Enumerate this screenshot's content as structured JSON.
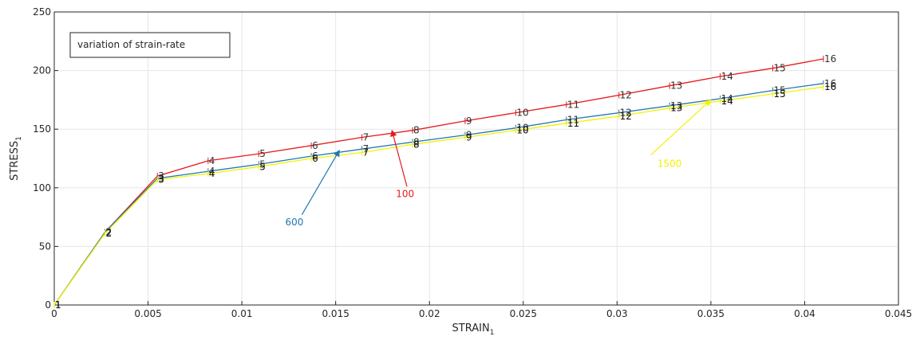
{
  "chart_data": {
    "type": "line",
    "title": "",
    "xlabel": "STRAIN",
    "xlabel_sub": "1",
    "ylabel": "STRESS",
    "ylabel_sub": "1",
    "xlim": [
      0,
      0.045
    ],
    "ylim": [
      0,
      250
    ],
    "xticks": [
      0,
      0.005,
      0.01,
      0.015,
      0.02,
      0.025,
      0.03,
      0.035,
      0.04,
      0.045
    ],
    "xtick_labels": [
      "0",
      "0.005",
      "0.01",
      "0.015",
      "0.02",
      "0.025",
      "0.03",
      "0.035",
      "0.04",
      "0.045"
    ],
    "yticks": [
      0,
      50,
      100,
      150,
      200,
      250
    ],
    "ytick_labels": [
      "0",
      "50",
      "100",
      "150",
      "200",
      "250"
    ],
    "grid": true,
    "legend_box": "variation of strain-rate",
    "legend_placement": "top-left",
    "series": [
      {
        "color": "#e41a1c",
        "label_color": "#333333",
        "x": [
          0,
          0.0027,
          0.0055,
          0.0082,
          0.0109,
          0.0137,
          0.0164,
          0.0191,
          0.0219,
          0.0246,
          0.0273,
          0.0301,
          0.0328,
          0.0355,
          0.0383,
          0.041
        ],
        "y": [
          0,
          62,
          110,
          123,
          129,
          136,
          143,
          149,
          157,
          164,
          171,
          179,
          187,
          195,
          202,
          210
        ]
      },
      {
        "color": "#1f77b4",
        "label_color": "#333333",
        "x": [
          0,
          0.0027,
          0.0055,
          0.0082,
          0.0109,
          0.0137,
          0.0164,
          0.0191,
          0.0219,
          0.0246,
          0.0273,
          0.0301,
          0.0328,
          0.0355,
          0.0383,
          0.041
        ],
        "y": [
          0,
          62,
          108,
          114,
          120,
          127,
          133,
          139,
          145,
          151,
          158,
          164,
          170,
          176,
          183,
          189
        ]
      },
      {
        "color": "#f2f200",
        "label_color": "#111111",
        "x": [
          0,
          0.0027,
          0.0055,
          0.0082,
          0.0109,
          0.0137,
          0.0164,
          0.0191,
          0.0219,
          0.0246,
          0.0273,
          0.0301,
          0.0328,
          0.0355,
          0.0383,
          0.041
        ],
        "y": [
          0,
          61,
          107,
          112,
          118,
          125,
          130,
          137,
          143,
          149,
          155,
          161,
          168,
          174,
          180,
          186
        ]
      }
    ],
    "point_labels": [
      "1",
      "2",
      "3",
      "4",
      "5",
      "6",
      "7",
      "8",
      "9",
      "10",
      "11",
      "12",
      "13",
      "14",
      "15",
      "16"
    ],
    "annotations": [
      {
        "text": "100",
        "color": "#e41a1c",
        "text_x": 0.0187,
        "text_y": 92,
        "arrow_from": [
          0.0188,
          101
        ],
        "arrow_to": [
          0.018,
          149
        ]
      },
      {
        "text": "600",
        "color": "#1f77b4",
        "text_x": 0.0128,
        "text_y": 68,
        "arrow_from": [
          0.0132,
          77
        ],
        "arrow_to": [
          0.0152,
          132
        ]
      },
      {
        "text": "1500",
        "color": "#f2f200",
        "text_x": 0.0328,
        "text_y": 118,
        "arrow_from": [
          0.0318,
          128
        ],
        "arrow_to": [
          0.035,
          175
        ]
      }
    ]
  }
}
